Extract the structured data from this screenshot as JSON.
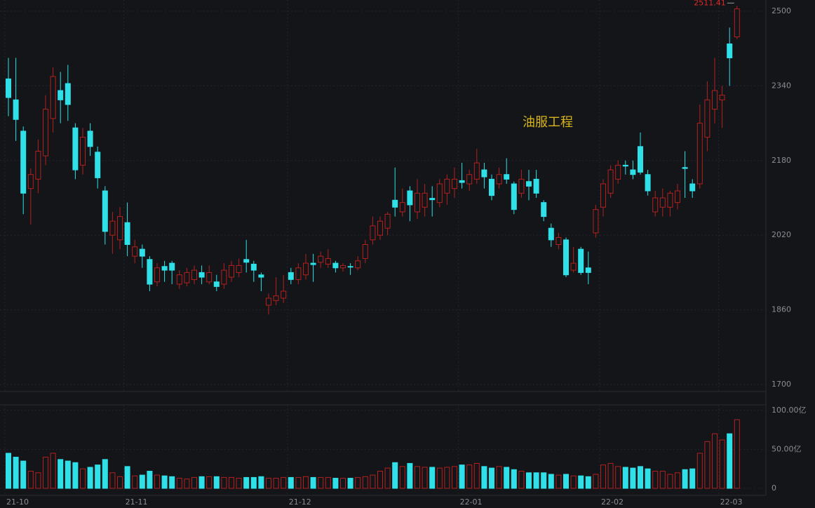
{
  "chart_data": [
    {
      "type": "candlestick",
      "title": "油服工程",
      "annotation": "2511.41",
      "categories": [
        "21-10",
        null,
        null,
        null,
        null,
        null,
        null,
        null,
        null,
        null,
        null,
        null,
        null,
        null,
        null,
        null,
        "21-11",
        null,
        null,
        null,
        null,
        null,
        null,
        null,
        null,
        null,
        null,
        null,
        null,
        null,
        null,
        null,
        null,
        null,
        null,
        null,
        null,
        null,
        "21-12",
        null,
        null,
        null,
        null,
        null,
        null,
        null,
        null,
        null,
        null,
        null,
        null,
        null,
        null,
        null,
        null,
        null,
        null,
        null,
        null,
        null,
        null,
        "22-01",
        null,
        null,
        null,
        null,
        null,
        null,
        null,
        null,
        null,
        null,
        null,
        null,
        null,
        null,
        null,
        null,
        null,
        null,
        "22-02",
        null,
        null,
        null,
        null,
        null,
        null,
        null,
        null,
        null,
        null,
        null,
        null,
        null,
        null,
        null,
        "22-03",
        null,
        null
      ],
      "open": [
        2355,
        2310,
        2243,
        2120,
        2140,
        2190,
        2270,
        2330,
        2345,
        2250,
        2170,
        2243,
        2198,
        2115,
        2020,
        2010,
        2047,
        1975,
        1990,
        1968,
        1920,
        1953,
        1960,
        1915,
        1918,
        1925,
        1940,
        1920,
        1920,
        1915,
        1930,
        1940,
        1968,
        1958,
        1935,
        1870,
        1880,
        1885,
        1940,
        1925,
        1935,
        1960,
        1962,
        1958,
        1960,
        1950,
        1953,
        1950,
        1970,
        2010,
        2020,
        2035,
        2095,
        2070,
        2115,
        2070,
        2080,
        2099,
        2090,
        2110,
        2120,
        2137,
        2130,
        2140,
        2160,
        2140,
        2130,
        2150,
        2130,
        2110,
        2135,
        2140,
        2090,
        2035,
        2000,
        2010,
        1945,
        1990,
        1950,
        2025,
        2080,
        2110,
        2140,
        2170,
        2160,
        2210,
        2150,
        2070,
        2080,
        2080,
        2090,
        2165,
        2130,
        2130,
        2230,
        2290,
        2310,
        2430,
        2445
      ],
      "high": [
        2400,
        2400,
        2253,
        2163,
        2225,
        2320,
        2380,
        2370,
        2385,
        2260,
        2250,
        2260,
        2210,
        2125,
        2070,
        2080,
        2090,
        2010,
        2000,
        1975,
        1960,
        1965,
        1965,
        1945,
        1950,
        1955,
        1955,
        1955,
        1935,
        1960,
        1965,
        1970,
        2010,
        1965,
        1940,
        1895,
        1930,
        1935,
        1950,
        1960,
        1980,
        1980,
        1985,
        1990,
        1965,
        1960,
        1960,
        1975,
        2010,
        2060,
        2060,
        2070,
        2165,
        2120,
        2125,
        2140,
        2130,
        2125,
        2140,
        2150,
        2165,
        2175,
        2160,
        2205,
        2175,
        2150,
        2165,
        2185,
        2135,
        2160,
        2160,
        2160,
        2095,
        2045,
        2025,
        2015,
        1995,
        1995,
        1985,
        2085,
        2140,
        2170,
        2180,
        2180,
        2180,
        2240,
        2160,
        2115,
        2120,
        2115,
        2130,
        2200,
        2140,
        2300,
        2350,
        2400,
        2340,
        2465,
        2511.41
      ],
      "low": [
        2275,
        2222,
        2065,
        2043,
        2110,
        2170,
        2240,
        2260,
        2265,
        2140,
        2150,
        2190,
        2120,
        2000,
        1980,
        1990,
        1975,
        1960,
        1950,
        1900,
        1910,
        1920,
        1915,
        1905,
        1910,
        1915,
        1915,
        1915,
        1900,
        1905,
        1920,
        1930,
        1940,
        1920,
        1900,
        1850,
        1870,
        1875,
        1915,
        1915,
        1925,
        1920,
        1950,
        1950,
        1940,
        1942,
        1935,
        1945,
        1960,
        2000,
        2010,
        2020,
        2060,
        2060,
        2050,
        2055,
        2060,
        2060,
        2080,
        2085,
        2100,
        2120,
        2115,
        2130,
        2120,
        2095,
        2120,
        2130,
        2065,
        2100,
        2095,
        2100,
        2050,
        1995,
        1990,
        1930,
        1940,
        1935,
        1915,
        2015,
        2060,
        2100,
        2130,
        2150,
        2140,
        2150,
        2105,
        2060,
        2060,
        2060,
        2075,
        2100,
        2100,
        2120,
        2200,
        2260,
        2250,
        2340,
        2440
      ],
      "close": [
        2315,
        2268,
        2110,
        2150,
        2200,
        2290,
        2360,
        2310,
        2300,
        2160,
        2230,
        2210,
        2143,
        2028,
        2050,
        2060,
        2000,
        1995,
        1975,
        1915,
        1950,
        1945,
        1945,
        1935,
        1940,
        1945,
        1930,
        1940,
        1910,
        1945,
        1955,
        1955,
        1962,
        1945,
        1930,
        1885,
        1890,
        1900,
        1925,
        1950,
        1960,
        1957,
        1975,
        1970,
        1950,
        1955,
        1952,
        1965,
        2000,
        2040,
        2050,
        2065,
        2080,
        2090,
        2085,
        2110,
        2110,
        2096,
        2130,
        2140,
        2140,
        2133,
        2150,
        2175,
        2145,
        2105,
        2150,
        2140,
        2075,
        2140,
        2125,
        2110,
        2060,
        2010,
        2015,
        1935,
        1960,
        1940,
        1940,
        2075,
        2130,
        2160,
        2170,
        2168,
        2150,
        2155,
        2115,
        2100,
        2100,
        2110,
        2115,
        2163,
        2115,
        2260,
        2310,
        2330,
        2320,
        2400,
        2505
      ],
      "up_color": "#b3201e",
      "down_color": "#2fe0e8",
      "ylim": [
        1685,
        2524
      ],
      "yticks": [
        1700,
        1860,
        2020,
        2180,
        2340,
        2500
      ],
      "grid": true
    },
    {
      "type": "bar",
      "values": [
        45,
        40,
        35,
        22,
        20,
        40,
        45,
        37,
        35,
        33,
        25,
        27,
        30,
        37,
        20,
        15,
        28,
        16,
        17,
        22,
        17,
        16,
        15,
        13,
        12,
        14,
        15,
        15,
        15,
        14,
        14,
        13,
        14,
        14,
        15,
        13,
        13,
        14,
        14,
        14,
        15,
        14,
        14,
        14,
        13,
        13,
        13,
        14,
        15,
        17,
        22,
        26,
        33,
        28,
        32,
        28,
        27,
        27,
        26,
        27,
        28,
        30,
        30,
        32,
        28,
        26,
        28,
        27,
        24,
        22,
        20,
        20,
        20,
        18,
        17,
        18,
        16,
        16,
        15,
        18,
        30,
        32,
        28,
        27,
        26,
        28,
        25,
        22,
        22,
        18,
        20,
        24,
        25,
        45,
        60,
        70,
        62,
        70,
        88
      ],
      "ylim": [
        -9,
        107
      ],
      "yticks": [
        0,
        {
          "value": 50,
          "label": "50.00亿"
        },
        {
          "value": 100,
          "label": "100.00亿"
        }
      ],
      "grid": true
    }
  ]
}
